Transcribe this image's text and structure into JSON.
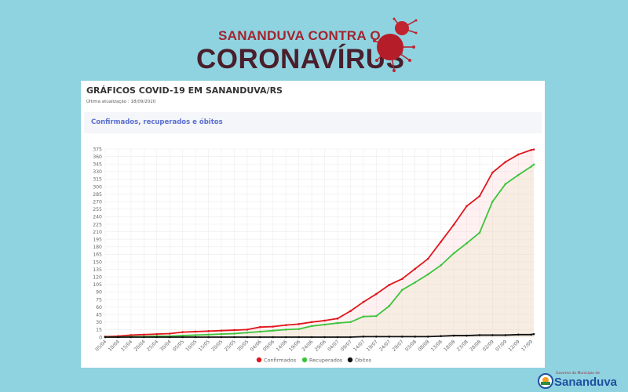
{
  "banner": {
    "line1": "SANANDUVA CONTRA O",
    "line2": "CORONAVÍRUS"
  },
  "card": {
    "title": "GRÁFICOS COVID-19 EM SANANDUVA/RS",
    "updated": "Última atualização : 18/09/2020",
    "section_title": "Confirmados, recuperados e óbitos"
  },
  "footer_logo": {
    "small": "Governo do Município de",
    "name": "Sananduva"
  },
  "colors": {
    "background": "#8fd3e0",
    "confirmed": "#e0161d",
    "recovered": "#3cc43c",
    "deaths": "#111111",
    "section_text": "#5b6fd0"
  },
  "chart_data": {
    "type": "line",
    "title": "",
    "xlabel": "",
    "ylabel": "",
    "ylim": [
      0,
      375
    ],
    "y_tick_step": 15,
    "grid": true,
    "legend": "bottom",
    "x_tick_labels": [
      "05/04",
      "10/04",
      "15/04",
      "20/04",
      "25/04",
      "30/04",
      "05/05",
      "10/05",
      "15/05",
      "20/05",
      "25/05",
      "30/05",
      "04/06",
      "09/06",
      "14/06",
      "19/06",
      "24/06",
      "29/06",
      "04/07",
      "09/07",
      "14/07",
      "19/07",
      "24/07",
      "29/07",
      "03/08",
      "08/08",
      "13/08",
      "18/08",
      "23/08",
      "28/08",
      "02/09",
      "07/09",
      "12/09",
      "17/09"
    ],
    "x": [
      "05/04",
      "10/04",
      "15/04",
      "20/04",
      "25/04",
      "30/04",
      "05/05",
      "10/05",
      "15/05",
      "20/05",
      "25/05",
      "30/05",
      "04/06",
      "09/06",
      "14/06",
      "19/06",
      "24/06",
      "29/06",
      "04/07",
      "09/07",
      "14/07",
      "19/07",
      "24/07",
      "29/07",
      "03/08",
      "08/08",
      "13/08",
      "18/08",
      "23/08",
      "28/08",
      "02/09",
      "07/09",
      "12/09",
      "17/09",
      "18/09"
    ],
    "series": [
      {
        "name": "Confirmados",
        "color": "#e0161d",
        "fill": "rgba(255,200,200,0.25)",
        "values": [
          1,
          2,
          4,
          5,
          6,
          7,
          10,
          11,
          12,
          13,
          14,
          15,
          20,
          21,
          24,
          26,
          30,
          33,
          37,
          52,
          70,
          86,
          104,
          116,
          136,
          156,
          190,
          224,
          261,
          281,
          328,
          349,
          364,
          373,
          374
        ]
      },
      {
        "name": "Recuperados",
        "color": "#3cc43c",
        "fill": "rgba(235,230,200,0.35)",
        "values": [
          0,
          0,
          1,
          1,
          2,
          2,
          3,
          4,
          5,
          6,
          7,
          9,
          11,
          13,
          15,
          16,
          22,
          25,
          28,
          30,
          41,
          42,
          62,
          94,
          109,
          125,
          143,
          167,
          187,
          208,
          270,
          305,
          323,
          340,
          344
        ]
      },
      {
        "name": "Óbitos",
        "color": "#111111",
        "fill": "none",
        "values": [
          0,
          0,
          0,
          0,
          0,
          0,
          0,
          0,
          0,
          0,
          0,
          0,
          0,
          0,
          0,
          0,
          0,
          0,
          0,
          0,
          1,
          1,
          1,
          1,
          1,
          1,
          2,
          3,
          3,
          4,
          4,
          4,
          5,
          5,
          6
        ]
      }
    ]
  }
}
